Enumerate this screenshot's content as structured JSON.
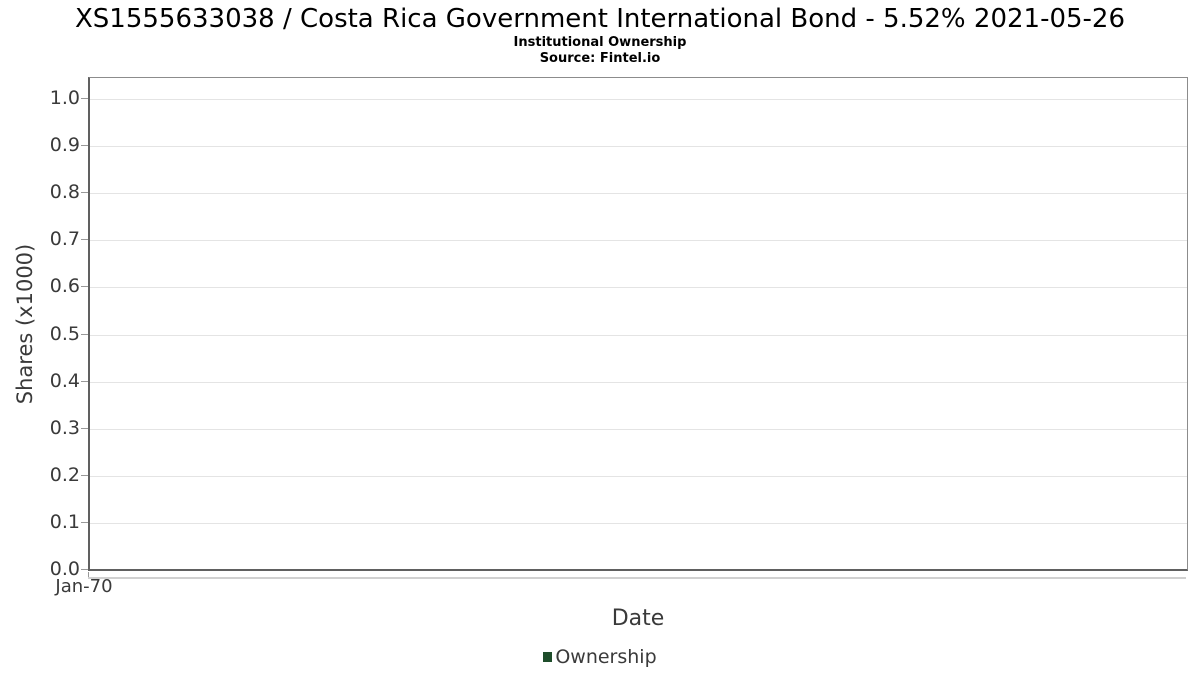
{
  "colors": {
    "background": "#ffffff",
    "title_text": "#000000",
    "axis_text": "#3a3a3a",
    "grid": "#e4e4e4",
    "plot_border": "#8c8c8c",
    "tick": "#999999",
    "legend_green": "#1e4d2b"
  },
  "chart_data": {
    "type": "line",
    "title": "XS1555633038 / Costa Rica Government International Bond - 5.52% 2021-05-26",
    "subtitle": "Institutional Ownership",
    "source": "Source: Fintel.io",
    "xlabel": "Date",
    "ylabel": "Shares (x1000)",
    "x_ticks": [
      "Jan-70"
    ],
    "y_ticks": [
      "0.0",
      "0.1",
      "0.2",
      "0.3",
      "0.4",
      "0.5",
      "0.6",
      "0.7",
      "0.8",
      "0.9",
      "1.0"
    ],
    "ylim": [
      0.0,
      1.05
    ],
    "grid": "horizontal",
    "legend": {
      "position": "bottom-center",
      "entries": [
        {
          "label": "Ownership",
          "color": "#1e4d2b",
          "marker": "square"
        }
      ]
    },
    "series": [
      {
        "name": "Ownership",
        "color": "#1e4d2b",
        "x": [],
        "values": []
      }
    ]
  }
}
